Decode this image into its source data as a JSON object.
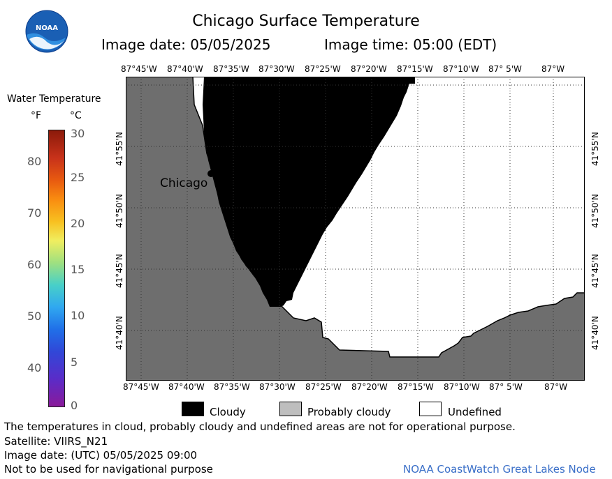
{
  "title": "Chicago Surface Temperature",
  "image_date": "Image date: 05/05/2025",
  "image_time": "Image time: 05:00 (EDT)",
  "logo_text": "NOAA",
  "colorbar": {
    "title": "Water Temperature",
    "unit_f": "°F",
    "unit_c": "°C",
    "f_ticks": [
      "80",
      "70",
      "60",
      "50",
      "40"
    ],
    "c_ticks": [
      "30",
      "25",
      "20",
      "15",
      "10",
      "5",
      "0"
    ]
  },
  "map": {
    "lon_labels": [
      "87°45'W",
      "87°40'W",
      "87°35'W",
      "87°30'W",
      "87°25'W",
      "87°20'W",
      "87°15'W",
      "87°10'W",
      "87° 5'W",
      "87°W"
    ],
    "lat_labels": [
      "41°55'N",
      "41°50'N",
      "41°45'N",
      "41°40'N"
    ],
    "city_label": "Chicago",
    "colors": {
      "land": "#6e6e6e",
      "cloudy": "#000000",
      "undefined": "#ffffff",
      "probably_cloudy": "#bebebe"
    }
  },
  "legend": {
    "cloudy": "Cloudy",
    "probably_cloudy": "Probably cloudy",
    "undefined": "Undefined"
  },
  "footer": {
    "disclaimer": "The temperatures in cloud, probably cloudy and undefined areas are not for operational purpose.",
    "satellite": "Satellite: VIIRS_N21",
    "utc_date": "Image date: (UTC) 05/05/2025  09:00",
    "nav_warning": "Not to be used for navigational purpose",
    "credit": "NOAA CoastWatch Great Lakes Node"
  }
}
